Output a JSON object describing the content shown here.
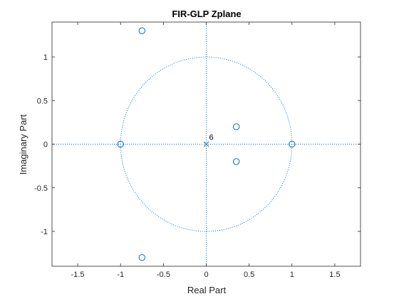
{
  "chart_data": {
    "type": "scatter",
    "title": "FIR-GLP Zplane",
    "xlabel": "Real Part",
    "ylabel": "Imaginary Part",
    "xlim": [
      -1.8,
      1.8
    ],
    "ylim": [
      -1.4,
      1.4
    ],
    "xticks": [
      -1.5,
      -1,
      -0.5,
      0,
      0.5,
      1,
      1.5
    ],
    "xtick_labels": [
      "-1.5",
      "-1",
      "-0.5",
      "0",
      "0.5",
      "1",
      "1.5"
    ],
    "yticks": [
      -1,
      -0.5,
      0,
      0.5,
      1
    ],
    "ytick_labels": [
      "-1",
      "-0.5",
      "0",
      "0.5",
      "1"
    ],
    "grid": false,
    "unit_circle": true,
    "zeros": [
      {
        "x": -0.75,
        "y": 1.3
      },
      {
        "x": -0.75,
        "y": -1.3
      },
      {
        "x": -1.0,
        "y": 0.0
      },
      {
        "x": 1.0,
        "y": 0.0
      },
      {
        "x": 0.35,
        "y": 0.2
      },
      {
        "x": 0.35,
        "y": -0.2
      }
    ],
    "poles": [
      {
        "x": 0.0,
        "y": 0.0
      }
    ],
    "annotations": [
      {
        "text": "6",
        "x": 0.0,
        "y": 0.0
      }
    ],
    "colors": {
      "marker": "#0072BD",
      "axes": "#262626",
      "dotted": "#0072BD"
    }
  }
}
